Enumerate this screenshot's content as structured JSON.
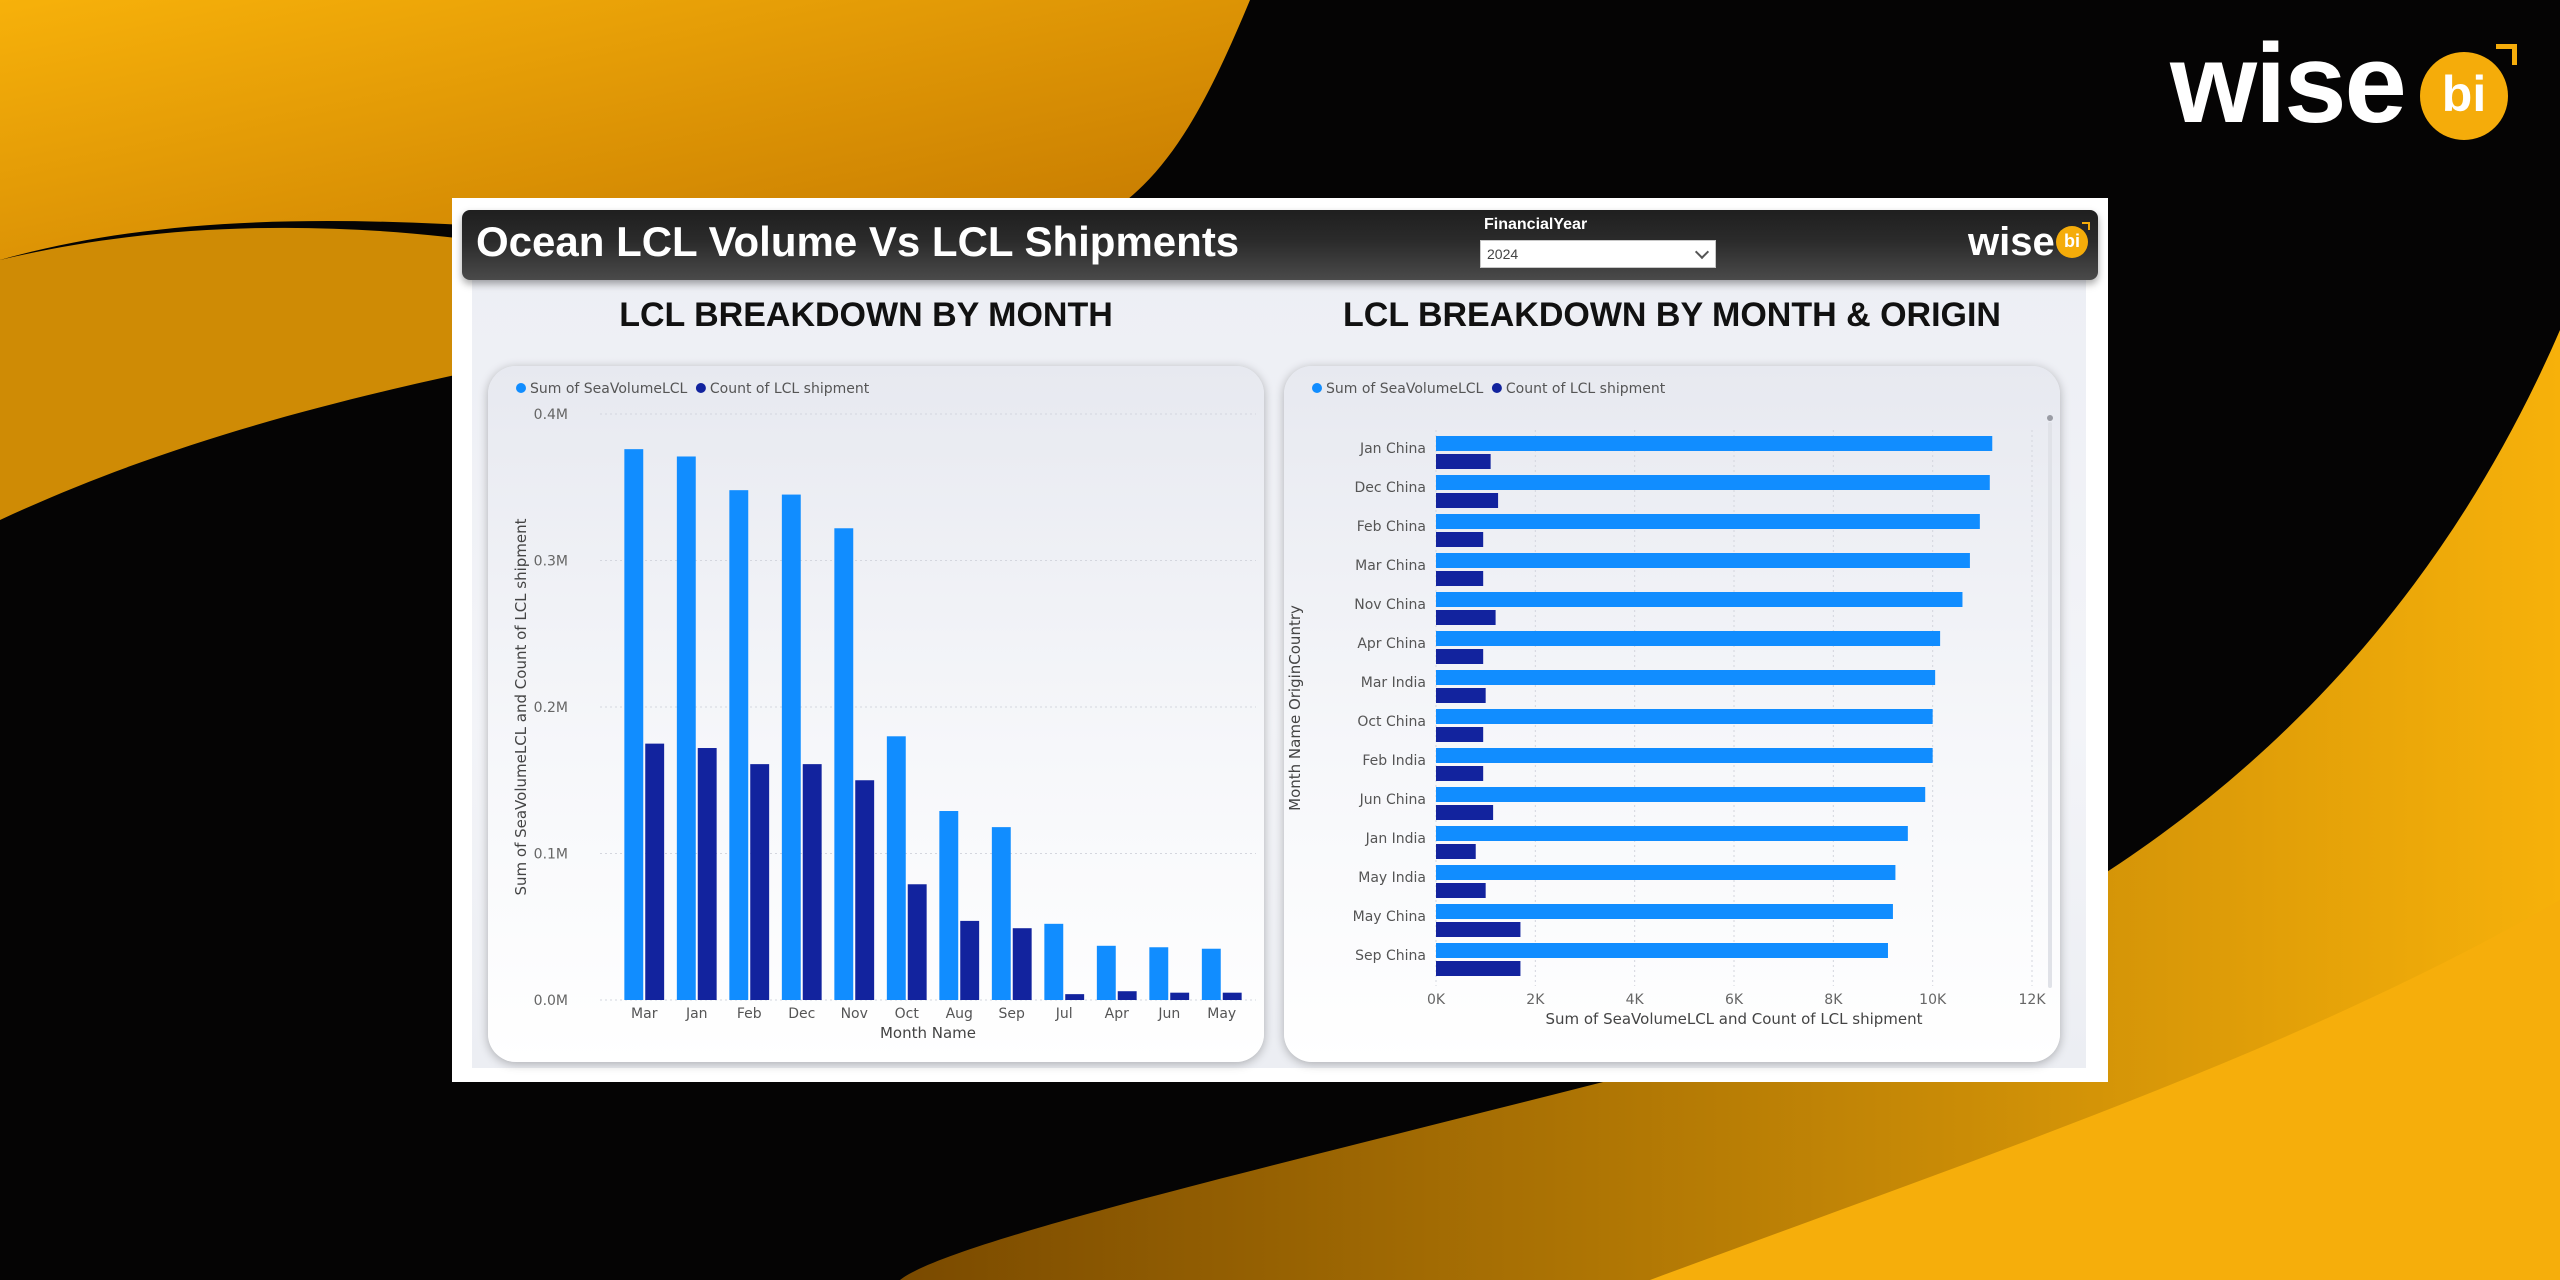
{
  "brand": {
    "wordmark": "wise",
    "badge": "bi",
    "accent_color": "#f5ac0a"
  },
  "header": {
    "title": "Ocean LCL Volume Vs LCL Shipments",
    "slicer_label": "FinancialYear",
    "slicer_value": "2024"
  },
  "colors": {
    "series_volume": "#118dff",
    "series_count": "#12239e"
  },
  "chart_data": [
    {
      "type": "bar",
      "orientation": "vertical",
      "title": "LCL BREAKDOWN BY MONTH",
      "xlabel": "Month Name",
      "ylabel": "Sum of SeaVolumeLCL and Count of LCL shipment",
      "legend": [
        "Sum of SeaVolumeLCL",
        "Count of LCL shipment"
      ],
      "categories": [
        "Mar",
        "Jan",
        "Feb",
        "Dec",
        "Nov",
        "Oct",
        "Aug",
        "Sep",
        "Jul",
        "Apr",
        "Jun",
        "May"
      ],
      "series": [
        {
          "name": "Sum of SeaVolumeLCL",
          "values": [
            376000,
            371000,
            348000,
            345000,
            322000,
            180000,
            129000,
            118000,
            52000,
            37000,
            36000,
            35000
          ]
        },
        {
          "name": "Count of LCL shipment",
          "values": [
            175000,
            172000,
            161000,
            161000,
            150000,
            79000,
            54000,
            49000,
            4000,
            6000,
            5000,
            5000
          ]
        }
      ],
      "ylim": [
        0,
        400000
      ],
      "yticks": [
        0,
        100000,
        200000,
        300000,
        400000
      ],
      "ytick_labels": [
        "0.0M",
        "0.1M",
        "0.2M",
        "0.3M",
        "0.4M"
      ],
      "grid": true,
      "legend_position": "top-left"
    },
    {
      "type": "bar",
      "orientation": "horizontal",
      "title": "LCL BREAKDOWN BY MONTH & ORIGIN",
      "xlabel": "Sum of SeaVolumeLCL and Count of LCL shipment",
      "ylabel": "Month Name OriginCountry",
      "legend": [
        "Sum of SeaVolumeLCL",
        "Count of LCL shipment"
      ],
      "categories": [
        "Jan China",
        "Dec China",
        "Feb China",
        "Mar China",
        "Nov China",
        "Apr China",
        "Mar India",
        "Oct China",
        "Feb India",
        "Jun China",
        "Jan India",
        "May India",
        "May China",
        "Sep China"
      ],
      "series": [
        {
          "name": "Sum of SeaVolumeLCL",
          "values": [
            11200,
            11150,
            10950,
            10750,
            10600,
            10150,
            10050,
            10000,
            10000,
            9850,
            9500,
            9250,
            9200,
            9100
          ]
        },
        {
          "name": "Count of LCL shipment",
          "values": [
            1100,
            1250,
            950,
            950,
            1200,
            950,
            1000,
            950,
            950,
            1150,
            800,
            1000,
            1700,
            1700
          ]
        }
      ],
      "xlim": [
        0,
        12000
      ],
      "xticks": [
        0,
        2000,
        4000,
        6000,
        8000,
        10000,
        12000
      ],
      "xtick_labels": [
        "0K",
        "2K",
        "4K",
        "6K",
        "8K",
        "10K",
        "12K"
      ],
      "grid": true,
      "legend_position": "top-left"
    }
  ]
}
